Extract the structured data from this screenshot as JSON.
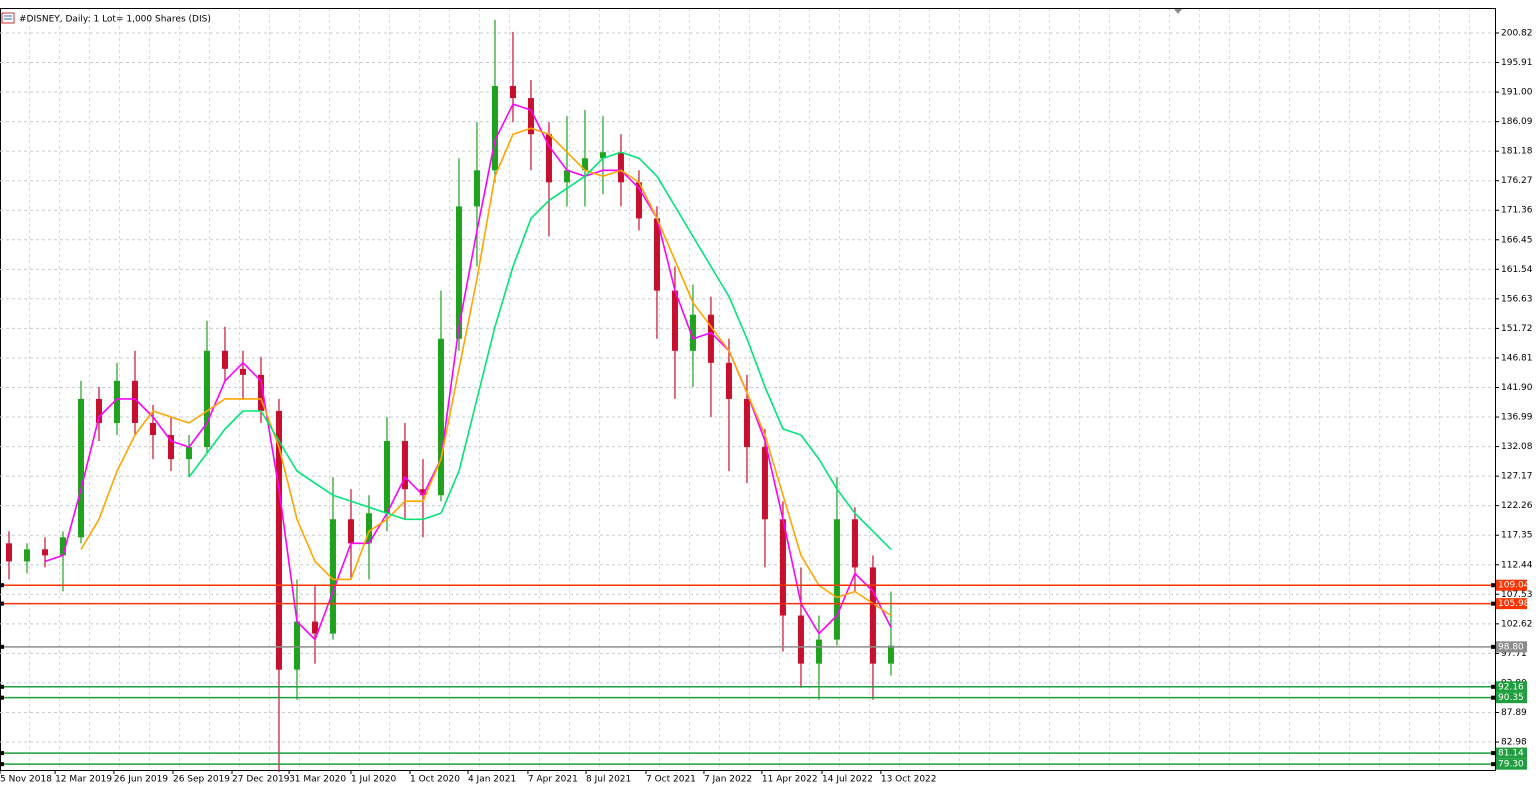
{
  "chart_data": {
    "type": "candlestick",
    "title": "#DISNEY, Daily:  1 Lot= 1,000 Shares (DIS)",
    "up_color": "#1fa31f",
    "down_color": "#c8102e",
    "grid": true,
    "xlim": [
      -0.5,
      82.56
    ],
    "xticks": [
      {
        "value": -0.5,
        "label": "5 Nov 2018"
      },
      {
        "value": 2.56,
        "label": "12 Mar 2019"
      },
      {
        "value": 5.83,
        "label": "26 Jun 2019"
      },
      {
        "value": 9.11,
        "label": "26 Sep 2019"
      },
      {
        "value": 12.39,
        "label": "27 Dec 2019"
      },
      {
        "value": 15.56,
        "label": "31 Mar 2020"
      },
      {
        "value": 19,
        "label": "1 Jul 2020"
      },
      {
        "value": 22.28,
        "label": "1 Oct 2020"
      },
      {
        "value": 25.5,
        "label": "4 Jan 2021"
      },
      {
        "value": 28.83,
        "label": "7 Apr 2021"
      },
      {
        "value": 32.06,
        "label": "8 Jul 2021"
      },
      {
        "value": 35.39,
        "label": "7 Oct 2021"
      },
      {
        "value": 38.61,
        "label": "7 Jan 2022"
      },
      {
        "value": 41.83,
        "label": "11 Apr 2022"
      },
      {
        "value": 45.17,
        "label": "14 Jul 2022"
      },
      {
        "value": 48.44,
        "label": "13 Oct 2022"
      }
    ],
    "ylim": [
      78.33,
      204.97
    ],
    "yticks": [
      200.82,
      195.91,
      {
        "value": 191,
        "label": "191.00"
      },
      186.09,
      181.18,
      176.27,
      171.36,
      166.45,
      161.54,
      156.63,
      151.72,
      146.81,
      {
        "value": 141.9,
        "label": "141.90"
      },
      136.99,
      132.08,
      127.17,
      122.26,
      117.35,
      112.44,
      107.53,
      102.62,
      97.71,
      {
        "value": 92.8,
        "label": "92.80"
      },
      87.89,
      82.98
    ],
    "open": [
      116,
      113,
      115,
      114,
      117,
      140,
      136,
      143,
      136,
      134,
      130,
      132,
      148,
      145,
      144,
      138,
      95,
      103,
      101,
      120,
      116,
      121,
      133,
      125,
      124,
      150,
      172,
      178,
      192,
      190,
      184,
      176,
      178,
      180,
      181,
      176,
      170,
      158,
      148,
      154,
      146,
      140,
      132,
      120,
      104,
      96,
      100,
      120,
      112,
      96
    ],
    "high": [
      118,
      116,
      117,
      118,
      143,
      142,
      146,
      148,
      139,
      137,
      134,
      153,
      152,
      148,
      147,
      140,
      110,
      109,
      127,
      125,
      124,
      137,
      136,
      130,
      158,
      180,
      186,
      203,
      201,
      193,
      186,
      187,
      188,
      187,
      184,
      178,
      172,
      162,
      159,
      157,
      150,
      144,
      135,
      123,
      112,
      104,
      127,
      122,
      114,
      108
    ],
    "low": [
      110,
      111,
      112,
      108,
      116,
      133,
      134,
      134,
      130,
      128,
      127,
      131,
      143,
      140,
      136,
      78,
      90,
      96,
      100,
      110,
      110,
      118,
      120,
      117,
      123,
      148,
      162,
      176,
      186,
      178,
      167,
      172,
      172,
      174,
      172,
      168,
      150,
      140,
      142,
      137,
      128,
      126,
      112,
      98,
      92,
      90,
      99,
      108,
      90,
      94
    ],
    "close": [
      113,
      115,
      114,
      117,
      140,
      136,
      143,
      136,
      134,
      130,
      132,
      148,
      145,
      144,
      138,
      95,
      103,
      101,
      120,
      116,
      121,
      133,
      125,
      124,
      150,
      172,
      178,
      192,
      190,
      184,
      176,
      178,
      180,
      181,
      176,
      170,
      158,
      148,
      154,
      146,
      140,
      132,
      120,
      104,
      96,
      100,
      120,
      112,
      96,
      99
    ],
    "lines": [
      {
        "color": "#ff00ff",
        "values": [
          null,
          null,
          113,
          114,
          125,
          137,
          140,
          140,
          137,
          133,
          132,
          136,
          143,
          146,
          143,
          125,
          103,
          100,
          108,
          116,
          116,
          121,
          127,
          124,
          130,
          152,
          168,
          183,
          189,
          188,
          182,
          178,
          177,
          178,
          178,
          175,
          170,
          158,
          150,
          151,
          148,
          141,
          133,
          120,
          106,
          101,
          104,
          111,
          108,
          102
        ]
      },
      {
        "color": "#ffa500",
        "values": [
          null,
          null,
          null,
          null,
          115,
          120,
          128,
          134,
          138,
          137,
          136,
          138,
          140,
          140,
          140,
          132,
          120,
          113,
          110,
          110,
          118,
          120,
          123,
          123,
          130,
          145,
          160,
          177,
          184,
          185,
          184,
          181,
          178,
          177,
          178,
          176,
          170,
          163,
          156,
          152,
          148,
          141,
          134,
          124,
          114,
          109,
          107,
          108,
          106,
          104
        ]
      },
      {
        "color": "#00e676",
        "values": [
          null,
          null,
          null,
          null,
          null,
          null,
          null,
          null,
          null,
          null,
          127,
          131,
          135,
          138,
          138,
          133,
          128,
          126,
          124,
          123,
          122,
          121,
          120,
          120,
          121,
          128,
          140,
          152,
          162,
          170,
          173,
          175,
          177,
          180,
          181,
          180,
          177,
          172,
          167,
          162,
          157,
          150,
          142,
          135,
          134,
          130,
          125,
          121,
          118,
          115
        ]
      }
    ],
    "levels": [
      {
        "value": 109.04,
        "color": "#ff3300"
      },
      {
        "value": 105.98,
        "color": "#ff3300"
      },
      {
        "value": 98.8,
        "label": "98.80",
        "color": "#8c8c8c"
      },
      {
        "value": 92.16,
        "color": "#1e9e3c"
      },
      {
        "value": 90.35,
        "color": "#1e9e3c"
      },
      {
        "value": 81.14,
        "color": "#1e9e3c"
      },
      {
        "value": 79.3,
        "label": "79.30",
        "color": "#1e9e3c"
      }
    ]
  }
}
